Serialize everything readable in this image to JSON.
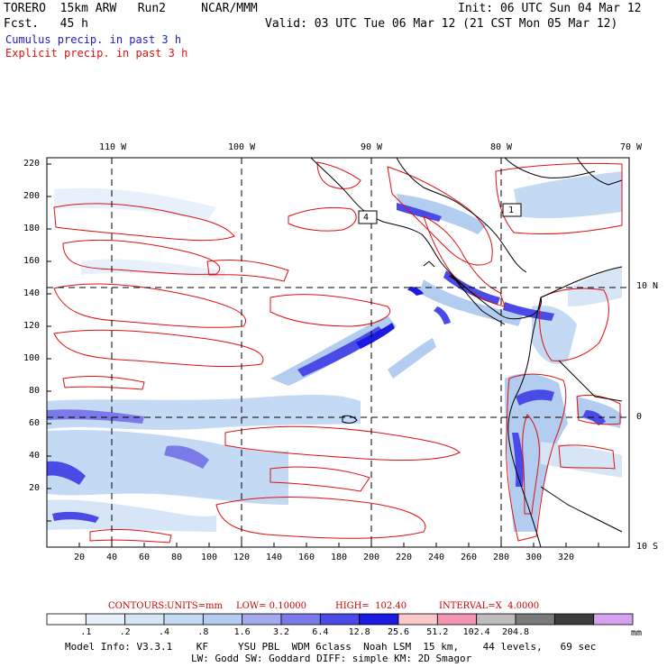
{
  "header": {
    "model": "TORERO  15km ARW   Run2     NCAR/MMM",
    "forecast": "Fcst.   45 h",
    "init": "Init: 06 UTC Sun 04 Mar 12",
    "valid": "Valid: 03 UTC Tue 06 Mar 12 (21 CST Mon 05 Mar 12)"
  },
  "legend": {
    "cumulus": "Cumulus precip. in past 3 h",
    "explicit": "Explicit precip. in past 3 h",
    "cumulus_color": "#1c1cc8",
    "explicit_color": "#e01010"
  },
  "axes": {
    "lon_labels": [
      "110 W",
      "100 W",
      "90 W",
      "80 W",
      "70 W"
    ],
    "lat_labels": [
      "10 N",
      "0",
      "10 S"
    ],
    "y_ticks": [
      "220",
      "200",
      "180",
      "160",
      "140",
      "120",
      "100",
      "80",
      "60",
      "40",
      "20"
    ],
    "x_ticks": [
      "20",
      "40",
      "60",
      "80",
      "100",
      "120",
      "140",
      "160",
      "180",
      "200",
      "220",
      "240",
      "260",
      "280",
      "300",
      "320"
    ]
  },
  "map_labels": {
    "box1": "4",
    "box2": "1"
  },
  "contours_info": {
    "label": "CONTOURS:",
    "units": "UNITS=mm",
    "low": "LOW= 0.10000",
    "high": "HIGH=  102.40",
    "interval": "INTERVAL=X  4.0000"
  },
  "colorbar": {
    "labels": [
      ".1",
      ".2",
      ".4",
      ".8",
      "1.6",
      "3.2",
      "6.4",
      "12.8",
      "25.6",
      "51.2",
      "102.4",
      "204.8"
    ],
    "unit": "mm",
    "colors": [
      "#ffffff",
      "#e8f1fb",
      "#d6e6f7",
      "#c4daf4",
      "#b2cdf0",
      "#a3aaef",
      "#7a7ae8",
      "#4a4ae6",
      "#1a1ae0",
      "#f9c8c8",
      "#f296b4",
      "#bdbdbd",
      "#7a7a7a",
      "#3c3c3c",
      "#d4a2f0"
    ]
  },
  "footer": {
    "line1": "Model Info: V3.3.1    KF     YSU PBL  WDM 6class  Noah LSM  15 km,    44 levels,   69 sec",
    "line2": "LW: Godd SW: Goddard DIFF: simple KM: 2D Smagor"
  }
}
